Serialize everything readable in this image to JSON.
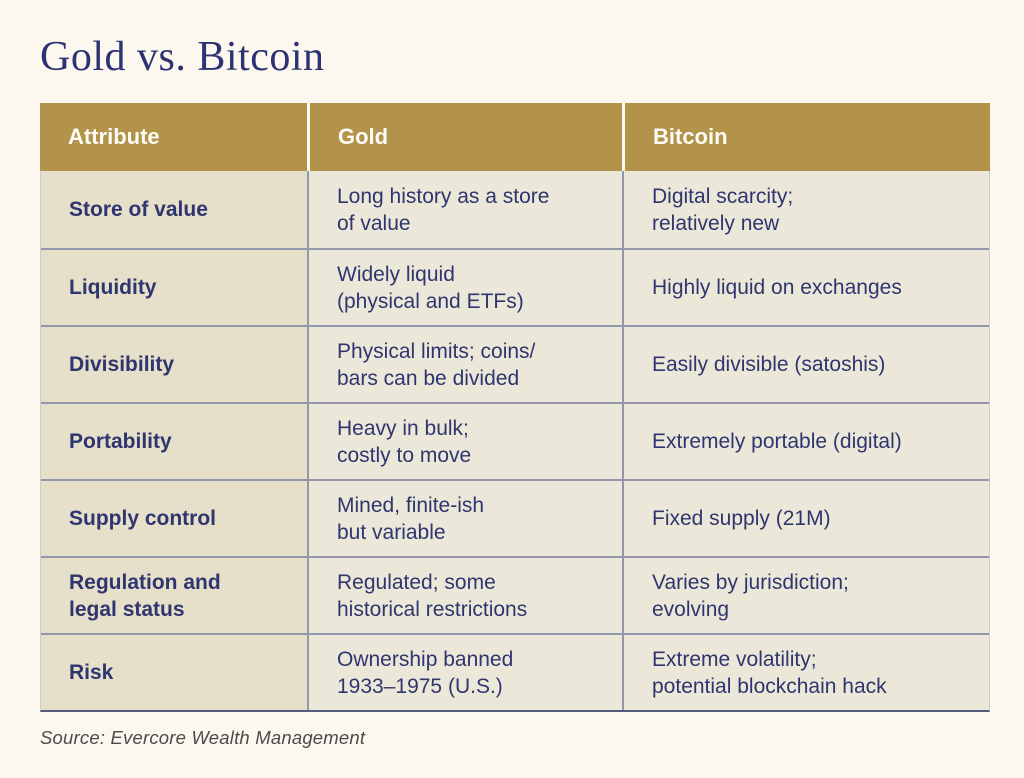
{
  "page": {
    "title": "Gold vs. Bitcoin",
    "source": "Source: Evercore Wealth Management"
  },
  "colors": {
    "page_background": "#fcf8ef",
    "header_gold": "#b29349",
    "attribute_column_bg": "#e6dfc9",
    "value_column_bg": "#ece8d9",
    "navy_text": "#2f356f",
    "title_navy": "#2c3272",
    "row_divider": "#9297ab",
    "table_bottom_border": "#565b7e",
    "header_text": "#fdfcf6",
    "source_text": "#4b4b4b"
  },
  "table": {
    "headers": [
      "Attribute",
      "Gold",
      "Bitcoin"
    ],
    "rows": [
      {
        "attribute": "Store of value",
        "gold": "Long history as a store\nof value",
        "bitcoin": "Digital scarcity;\nrelatively new"
      },
      {
        "attribute": "Liquidity",
        "gold": "Widely liquid\n(physical and ETFs)",
        "bitcoin": "Highly liquid on exchanges"
      },
      {
        "attribute": "Divisibility",
        "gold": "Physical limits; coins/\nbars can be divided",
        "bitcoin": "Easily divisible (satoshis)"
      },
      {
        "attribute": "Portability",
        "gold": "Heavy in bulk;\ncostly to move",
        "bitcoin": "Extremely portable (digital)"
      },
      {
        "attribute": "Supply control",
        "gold": "Mined, finite-ish\nbut variable",
        "bitcoin": "Fixed supply (21M)"
      },
      {
        "attribute": "Regulation and\nlegal status",
        "gold": "Regulated; some\nhistorical restrictions",
        "bitcoin": "Varies by jurisdiction;\nevolving"
      },
      {
        "attribute": "Risk",
        "gold": "Ownership banned\n1933–1975 (U.S.)",
        "bitcoin": "Extreme volatility;\npotential blockchain hack"
      }
    ]
  },
  "chart_data": {
    "type": "table",
    "title": "Gold vs. Bitcoin",
    "columns": [
      "Attribute",
      "Gold",
      "Bitcoin"
    ],
    "rows": [
      [
        "Store of value",
        "Long history as a store of value",
        "Digital scarcity; relatively new"
      ],
      [
        "Liquidity",
        "Widely liquid (physical and ETFs)",
        "Highly liquid on exchanges"
      ],
      [
        "Divisibility",
        "Physical limits; coins/bars can be divided",
        "Easily divisible (satoshis)"
      ],
      [
        "Portability",
        "Heavy in bulk; costly to move",
        "Extremely portable (digital)"
      ],
      [
        "Supply control",
        "Mined, finite-ish but variable",
        "Fixed supply (21M)"
      ],
      [
        "Regulation and legal status",
        "Regulated; some historical restrictions",
        "Varies by jurisdiction; evolving"
      ],
      [
        "Risk",
        "Ownership banned 1933–1975 (U.S.)",
        "Extreme volatility; potential blockchain hack"
      ]
    ],
    "source": "Source: Evercore Wealth Management"
  }
}
